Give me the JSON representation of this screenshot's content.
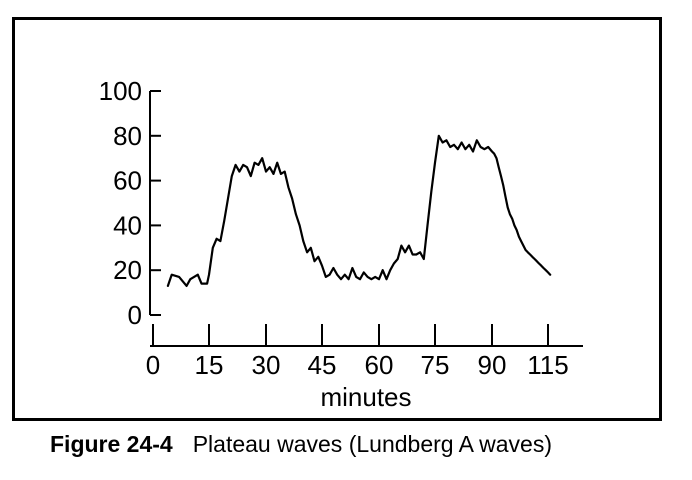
{
  "chart_data": {
    "type": "line",
    "xlabel": "minutes",
    "ylabel": "",
    "x_ticks": [
      0,
      15,
      30,
      45,
      60,
      75,
      90,
      115
    ],
    "y_ticks": [
      0,
      20,
      40,
      60,
      80,
      100
    ],
    "xlim": [
      0,
      115
    ],
    "ylim": [
      0,
      100
    ],
    "grid": false,
    "series": [
      {
        "name": "",
        "x": [
          4,
          5,
          7,
          9,
          10,
          12,
          13,
          14.5,
          15,
          16,
          17,
          18,
          19,
          20,
          21,
          22,
          23,
          24,
          25,
          26,
          27,
          28,
          29,
          30,
          31,
          32,
          33,
          34,
          35,
          36,
          37,
          38,
          39,
          40,
          41,
          42,
          43,
          44,
          45,
          46,
          47,
          48,
          49,
          50,
          51,
          52,
          53,
          54,
          55,
          56,
          57,
          58,
          59,
          60,
          61,
          62,
          63,
          64,
          65,
          66,
          67,
          68,
          69,
          70,
          71,
          72,
          73,
          74,
          75,
          76,
          77,
          78,
          79,
          80,
          81,
          82,
          83,
          84,
          85,
          86,
          87,
          88,
          89,
          90,
          91,
          92,
          93,
          94,
          95,
          96,
          97,
          98,
          99,
          100,
          101,
          102,
          103,
          104,
          105,
          106,
          107,
          108,
          109,
          110,
          111,
          112,
          113,
          114,
          115,
          116
        ],
        "y": [
          13,
          18,
          17,
          13,
          16,
          18,
          14,
          14,
          18,
          30,
          34,
          33,
          42,
          52,
          62,
          67,
          64,
          67,
          66,
          62,
          68,
          67,
          70,
          64,
          66,
          63,
          68,
          63,
          64,
          57,
          52,
          45,
          40,
          33,
          28,
          30,
          24,
          26,
          22,
          17,
          18,
          21,
          18,
          16,
          18,
          16,
          21,
          17,
          16,
          19,
          17,
          16,
          17,
          16,
          20,
          16,
          20,
          23,
          25,
          31,
          28,
          31,
          27,
          27,
          28,
          25,
          40,
          55,
          68,
          80,
          77,
          78,
          75,
          76,
          74,
          77,
          74,
          76,
          73,
          78,
          75,
          74,
          75,
          73,
          72,
          70,
          66,
          62,
          58,
          53,
          48,
          45,
          43,
          40,
          38,
          35,
          33,
          31,
          29,
          28,
          27,
          26,
          25,
          24,
          23,
          22,
          21,
          20,
          19,
          18
        ]
      }
    ]
  },
  "caption": {
    "label": "Figure 24-4",
    "text": "Plateau waves (Lundberg A waves)"
  }
}
